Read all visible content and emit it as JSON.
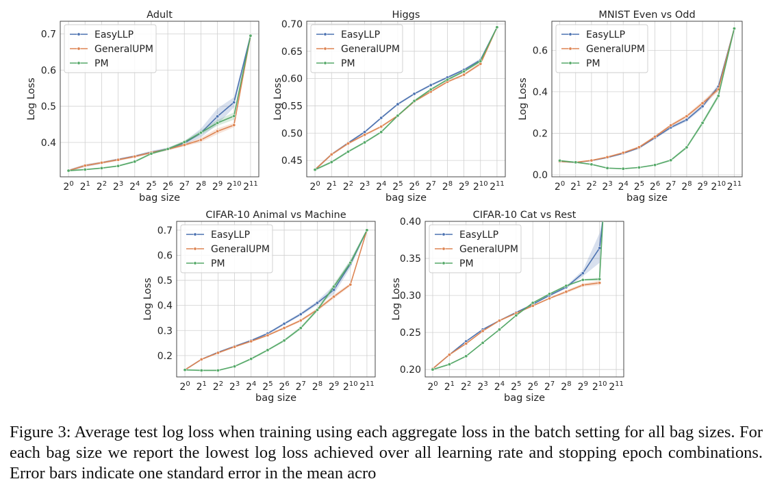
{
  "colors": {
    "easyllp": "#4c72b0",
    "generalupm": "#dd8452",
    "pm": "#55a868",
    "grid": "#d0d0d0",
    "axis": "#333333",
    "legend_border": "#cccccc"
  },
  "x_tick_labels": [
    "0",
    "1",
    "2",
    "3",
    "4",
    "5",
    "6",
    "7",
    "8",
    "9",
    "10",
    "11"
  ],
  "chart_data": [
    {
      "type": "line",
      "title": "Adult",
      "xlabel": "bag size",
      "ylabel": "Log Loss",
      "x_base": "2",
      "x": [
        0,
        1,
        2,
        3,
        4,
        5,
        6,
        7,
        8,
        9,
        10,
        11
      ],
      "ylim": [
        0.305,
        0.735
      ],
      "yticks": [
        0.4,
        0.5,
        0.6,
        0.7
      ],
      "ytick_labels": [
        "0.4",
        "0.5",
        "0.6",
        "0.7"
      ],
      "legend": "top-left",
      "grid": true,
      "series": [
        {
          "name": "EasyLLP",
          "color_key": "easyllp",
          "values": [
            0.322,
            0.336,
            0.344,
            0.353,
            0.362,
            0.373,
            0.382,
            0.398,
            0.426,
            0.472,
            0.511,
            0.695
          ],
          "band": [
            0.003,
            0.004,
            0.003,
            0.003,
            0.003,
            0.004,
            0.004,
            0.005,
            0.012,
            0.022,
            0.014,
            0.004
          ]
        },
        {
          "name": "GeneralUPM",
          "color_key": "generalupm",
          "values": [
            0.322,
            0.336,
            0.344,
            0.352,
            0.361,
            0.372,
            0.381,
            0.393,
            0.407,
            0.431,
            0.448,
            0.695
          ],
          "band": [
            0.003,
            0.003,
            0.003,
            0.003,
            0.003,
            0.003,
            0.003,
            0.004,
            0.006,
            0.008,
            0.006,
            0.003
          ]
        },
        {
          "name": "PM",
          "color_key": "pm",
          "values": [
            0.322,
            0.325,
            0.329,
            0.335,
            0.347,
            0.369,
            0.382,
            0.401,
            0.427,
            0.454,
            0.473,
            0.695
          ],
          "band": [
            0.002,
            0.002,
            0.002,
            0.002,
            0.003,
            0.003,
            0.003,
            0.004,
            0.006,
            0.008,
            0.01,
            0.003
          ]
        }
      ]
    },
    {
      "type": "line",
      "title": "Higgs",
      "xlabel": "bag size",
      "ylabel": "Log Loss",
      "x_base": "2",
      "x": [
        0,
        1,
        2,
        3,
        4,
        5,
        6,
        7,
        8,
        9,
        10,
        11
      ],
      "ylim": [
        0.42,
        0.705
      ],
      "yticks": [
        0.45,
        0.5,
        0.55,
        0.6,
        0.65,
        0.7
      ],
      "ytick_labels": [
        "0.45",
        "0.50",
        "0.55",
        "0.60",
        "0.65",
        "0.70"
      ],
      "legend": "top-left",
      "grid": true,
      "series": [
        {
          "name": "EasyLLP",
          "color_key": "easyllp",
          "values": [
            0.433,
            0.461,
            0.482,
            0.502,
            0.528,
            0.553,
            0.572,
            0.588,
            0.602,
            0.616,
            0.634,
            0.694
          ],
          "band": [
            0.002,
            0.002,
            0.002,
            0.002,
            0.002,
            0.002,
            0.002,
            0.002,
            0.002,
            0.002,
            0.003,
            0.002
          ]
        },
        {
          "name": "GeneralUPM",
          "color_key": "generalupm",
          "values": [
            0.433,
            0.461,
            0.481,
            0.497,
            0.512,
            0.532,
            0.558,
            0.576,
            0.594,
            0.607,
            0.627,
            0.694
          ],
          "band": [
            0.002,
            0.002,
            0.002,
            0.002,
            0.002,
            0.002,
            0.002,
            0.002,
            0.002,
            0.002,
            0.003,
            0.002
          ]
        },
        {
          "name": "PM",
          "color_key": "pm",
          "values": [
            0.433,
            0.447,
            0.466,
            0.483,
            0.502,
            0.532,
            0.559,
            0.58,
            0.598,
            0.613,
            0.632,
            0.694
          ],
          "band": [
            0.002,
            0.002,
            0.002,
            0.002,
            0.002,
            0.002,
            0.002,
            0.002,
            0.002,
            0.002,
            0.003,
            0.002
          ]
        }
      ]
    },
    {
      "type": "line",
      "title": "MNIST Even vs Odd",
      "xlabel": "bag size",
      "ylabel": "Log Loss",
      "x_base": "2",
      "x": [
        0,
        1,
        2,
        3,
        4,
        5,
        6,
        7,
        8,
        9,
        10,
        11
      ],
      "ylim": [
        -0.01,
        0.74
      ],
      "yticks": [
        0.0,
        0.2,
        0.4,
        0.6
      ],
      "ytick_labels": [
        "0.0",
        "0.2",
        "0.4",
        "0.6"
      ],
      "legend": "top-left",
      "grid": true,
      "series": [
        {
          "name": "EasyLLP",
          "color_key": "easyllp",
          "values": [
            0.064,
            0.059,
            0.068,
            0.083,
            0.103,
            0.13,
            0.178,
            0.228,
            0.265,
            0.33,
            0.425,
            0.705
          ],
          "band": [
            0.003,
            0.003,
            0.003,
            0.004,
            0.004,
            0.005,
            0.006,
            0.007,
            0.008,
            0.01,
            0.012,
            0.006
          ]
        },
        {
          "name": "GeneralUPM",
          "color_key": "generalupm",
          "values": [
            0.064,
            0.06,
            0.069,
            0.085,
            0.106,
            0.133,
            0.183,
            0.238,
            0.282,
            0.345,
            0.412,
            0.705
          ],
          "band": [
            0.003,
            0.003,
            0.003,
            0.004,
            0.004,
            0.005,
            0.006,
            0.007,
            0.008,
            0.01,
            0.012,
            0.006
          ]
        },
        {
          "name": "PM",
          "color_key": "pm",
          "values": [
            0.068,
            0.06,
            0.05,
            0.032,
            0.029,
            0.035,
            0.047,
            0.07,
            0.132,
            0.25,
            0.38,
            0.705
          ],
          "band": [
            0.003,
            0.003,
            0.003,
            0.003,
            0.003,
            0.003,
            0.004,
            0.005,
            0.007,
            0.01,
            0.012,
            0.006
          ]
        }
      ]
    },
    {
      "type": "line",
      "title": "CIFAR-10 Animal vs Machine",
      "xlabel": "bag size",
      "ylabel": "Log Loss",
      "x_base": "2",
      "x": [
        0,
        1,
        2,
        3,
        4,
        5,
        6,
        7,
        8,
        9,
        10,
        11
      ],
      "ylim": [
        0.115,
        0.735
      ],
      "yticks": [
        0.2,
        0.3,
        0.4,
        0.5,
        0.6,
        0.7
      ],
      "ytick_labels": [
        "0.2",
        "0.3",
        "0.4",
        "0.5",
        "0.6",
        "0.7"
      ],
      "legend": "top-left",
      "grid": true,
      "series": [
        {
          "name": "EasyLLP",
          "color_key": "easyllp",
          "values": [
            0.143,
            0.185,
            0.213,
            0.237,
            0.26,
            0.288,
            0.327,
            0.365,
            0.41,
            0.462,
            0.565,
            0.7
          ],
          "band": [
            0.003,
            0.003,
            0.003,
            0.003,
            0.004,
            0.004,
            0.005,
            0.006,
            0.008,
            0.018,
            0.015,
            0.005
          ]
        },
        {
          "name": "GeneralUPM",
          "color_key": "generalupm",
          "values": [
            0.143,
            0.185,
            0.211,
            0.235,
            0.257,
            0.281,
            0.31,
            0.34,
            0.383,
            0.435,
            0.483,
            0.7
          ],
          "band": [
            0.003,
            0.003,
            0.003,
            0.003,
            0.003,
            0.004,
            0.004,
            0.005,
            0.006,
            0.008,
            0.006,
            0.004
          ]
        },
        {
          "name": "PM",
          "color_key": "pm",
          "values": [
            0.143,
            0.141,
            0.141,
            0.157,
            0.187,
            0.222,
            0.26,
            0.31,
            0.382,
            0.475,
            0.57,
            0.7
          ],
          "band": [
            0.003,
            0.003,
            0.003,
            0.003,
            0.004,
            0.004,
            0.005,
            0.006,
            0.007,
            0.01,
            0.012,
            0.005
          ]
        }
      ]
    },
    {
      "type": "line",
      "title": "CIFAR-10 Cat vs Rest",
      "xlabel": "bag size",
      "ylabel": "Log Loss",
      "x_base": "2",
      "x": [
        0,
        1,
        2,
        3,
        4,
        5,
        6,
        7,
        8,
        9,
        10,
        11
      ],
      "xlim": [
        -0.45,
        11.45
      ],
      "ylim": [
        0.19,
        0.4
      ],
      "yticks": [
        0.2,
        0.25,
        0.3,
        0.35,
        0.4
      ],
      "ytick_labels": [
        "0.20",
        "0.25",
        "0.30",
        "0.35",
        "0.40"
      ],
      "legend": "top-left",
      "grid": true,
      "series": [
        {
          "name": "EasyLLP",
          "color_key": "easyllp",
          "x": [
            0,
            1,
            2,
            3,
            4,
            5,
            6,
            7,
            8,
            9,
            10,
            10.2
          ],
          "values": [
            0.201,
            0.22,
            0.238,
            0.254,
            0.266,
            0.277,
            0.288,
            0.3,
            0.311,
            0.33,
            0.364,
            0.402
          ],
          "band": [
            0.001,
            0.001,
            0.001,
            0.001,
            0.001,
            0.001,
            0.001,
            0.001,
            0.002,
            0.004,
            0.02,
            0.006
          ]
        },
        {
          "name": "GeneralUPM",
          "color_key": "generalupm",
          "x": [
            0,
            1,
            2,
            3,
            4,
            5,
            6,
            7,
            8,
            9,
            10
          ],
          "values": [
            0.201,
            0.22,
            0.235,
            0.252,
            0.266,
            0.276,
            0.286,
            0.296,
            0.305,
            0.314,
            0.317
          ],
          "band": [
            0.001,
            0.001,
            0.001,
            0.001,
            0.001,
            0.001,
            0.001,
            0.001,
            0.002,
            0.002,
            0.003
          ]
        },
        {
          "name": "PM",
          "color_key": "pm",
          "x": [
            0,
            1,
            2,
            3,
            4,
            5,
            6,
            7,
            8,
            9,
            10,
            10.2
          ],
          "values": [
            0.2,
            0.207,
            0.218,
            0.236,
            0.254,
            0.273,
            0.29,
            0.302,
            0.313,
            0.321,
            0.322,
            0.402
          ],
          "band": [
            0.001,
            0.001,
            0.001,
            0.001,
            0.001,
            0.001,
            0.001,
            0.001,
            0.001,
            0.001,
            0.002,
            0.002
          ]
        }
      ]
    }
  ],
  "caption": "Figure 3: Average test log loss when training using each aggregate loss in the batch setting for all bag sizes. For each bag size we report the lowest log loss achieved over all learning rate and stopping epoch combinations. Error bars indicate one standard error in the mean acro"
}
